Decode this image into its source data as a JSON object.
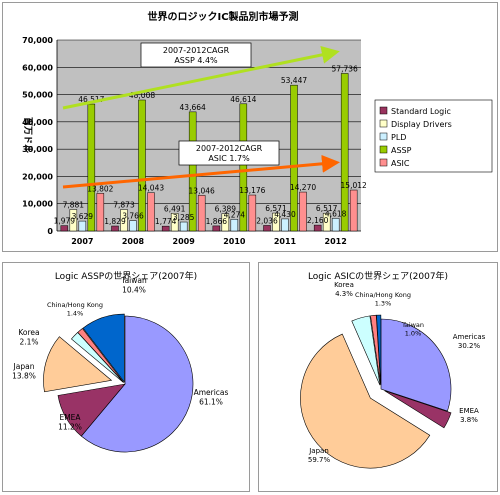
{
  "chart_data": [
    {
      "type": "bar",
      "title": "世界のロジックIC製品別市場予測",
      "ylabel": "百万ドル",
      "categories": [
        "2007",
        "2008",
        "2009",
        "2010",
        "2011",
        "2012"
      ],
      "ylim": [
        0,
        70000
      ],
      "yticks": [
        "0",
        "10,000",
        "20,000",
        "30,000",
        "40,000",
        "50,000",
        "60,000",
        "70,000"
      ],
      "grid": true,
      "legend_position": "right",
      "series": [
        {
          "name": "Standard Logic",
          "color": "#99335e",
          "values": [
            1979,
            1829,
            1774,
            1866,
            2036,
            2160
          ]
        },
        {
          "name": "Display Drivers",
          "color": "#ffffc8",
          "values": [
            7881,
            7873,
            6491,
            6389,
            6571,
            6517
          ]
        },
        {
          "name": "PLD",
          "color": "#ccf0ff",
          "values": [
            3629,
            3766,
            3285,
            4274,
            4430,
            4618
          ]
        },
        {
          "name": "ASSP",
          "color": "#99cc00",
          "values": [
            46517,
            48008,
            43664,
            46614,
            53447,
            57736
          ]
        },
        {
          "name": "ASIC",
          "color": "#ff8f8f",
          "values": [
            13802,
            14043,
            13046,
            13176,
            14270,
            15012
          ]
        }
      ],
      "data_labels": [
        [
          "1,979",
          "7,881",
          "3,629",
          "46,517",
          "13,802"
        ],
        [
          "1,829",
          "7,873",
          "3,766",
          "48,008",
          "14,043"
        ],
        [
          "1,774",
          "6,491",
          "3,285",
          "43,664",
          "13,046"
        ],
        [
          "1,866",
          "6,389",
          "4,274",
          "46,614",
          "13,176"
        ],
        [
          "2,036",
          "6,571",
          "4,430",
          "53,447",
          "14,270"
        ],
        [
          "2,160",
          "6,517",
          "4,618",
          "57,736",
          "15,012"
        ]
      ],
      "annotations": [
        {
          "line1": "2007-2012CAGR",
          "line2": "ASSP  4.4%",
          "arrow_color": "#b0e020"
        },
        {
          "line1": "2007-2012CAGR",
          "line2": "ASIC  1.7%",
          "arrow_color": "#ff6600"
        }
      ]
    },
    {
      "type": "pie",
      "title": "Logic ASSPの世界シェア(2007年)",
      "slices": [
        {
          "label": "Americas",
          "value": 61.1,
          "text": "61.1%",
          "color": "#9999ff"
        },
        {
          "label": "EMEA",
          "value": 11.2,
          "text": "11.2%",
          "color": "#993366"
        },
        {
          "label": "Japan",
          "value": 13.8,
          "text": "13.8%",
          "color": "#ffcc99"
        },
        {
          "label": "Korea",
          "value": 2.1,
          "text": "2.1%",
          "color": "#ccffff"
        },
        {
          "label": "China/Hong Kong",
          "value": 1.4,
          "text": "1.4%",
          "color": "#ff8080"
        },
        {
          "label": "Taiwan",
          "value": 10.4,
          "text": "10.4%",
          "color": "#0066cc"
        }
      ]
    },
    {
      "type": "pie",
      "title": "Logic ASICの世界シェア(2007年)",
      "slices": [
        {
          "label": "Americas",
          "value": 30.2,
          "text": "30.2%",
          "color": "#9999ff"
        },
        {
          "label": "EMEA",
          "value": 3.8,
          "text": "3.8%",
          "color": "#993366"
        },
        {
          "label": "Japan",
          "value": 59.7,
          "text": "59.7%",
          "color": "#ffcc99"
        },
        {
          "label": "Korea",
          "value": 4.3,
          "text": "4.3%",
          "color": "#ccffff"
        },
        {
          "label": "China/Hong Kong",
          "value": 1.3,
          "text": "1.3%",
          "color": "#ff8080"
        },
        {
          "label": "Taiwan",
          "value": 1.0,
          "text": "1.0%",
          "color": "#0066cc"
        }
      ]
    }
  ]
}
